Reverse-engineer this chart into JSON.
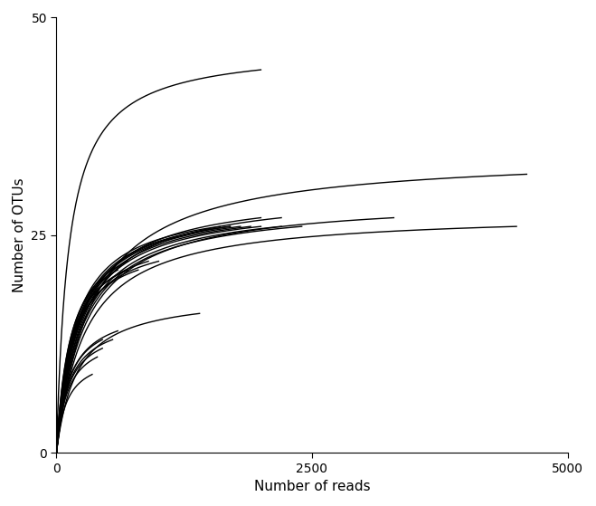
{
  "title": "",
  "xlabel": "Number of reads",
  "ylabel": "Number of OTUs",
  "xlim": [
    0,
    5000
  ],
  "ylim": [
    0,
    50
  ],
  "xticks": [
    0,
    2500,
    5000
  ],
  "yticks": [
    0,
    25,
    50
  ],
  "background_color": "#ffffff",
  "line_color": "#000000",
  "line_width": 1.0,
  "curves": [
    {
      "max_x": 2000,
      "max_y": 44,
      "k": 120
    },
    {
      "max_x": 4600,
      "max_y": 32,
      "k": 350
    },
    {
      "max_x": 4500,
      "max_y": 26,
      "k": 280
    },
    {
      "max_x": 3300,
      "max_y": 27,
      "k": 280
    },
    {
      "max_x": 2200,
      "max_y": 27,
      "k": 250
    },
    {
      "max_x": 2200,
      "max_y": 26,
      "k": 240
    },
    {
      "max_x": 2000,
      "max_y": 26,
      "k": 220
    },
    {
      "max_x": 1900,
      "max_y": 26,
      "k": 210
    },
    {
      "max_x": 1800,
      "max_y": 26,
      "k": 200
    },
    {
      "max_x": 1700,
      "max_y": 26,
      "k": 190
    },
    {
      "max_x": 1600,
      "max_y": 26,
      "k": 180
    },
    {
      "max_x": 2000,
      "max_y": 27,
      "k": 230
    },
    {
      "max_x": 1700,
      "max_y": 26,
      "k": 200
    },
    {
      "max_x": 2400,
      "max_y": 26,
      "k": 250
    },
    {
      "max_x": 1000,
      "max_y": 22,
      "k": 160
    },
    {
      "max_x": 900,
      "max_y": 22,
      "k": 150
    },
    {
      "max_x": 800,
      "max_y": 21,
      "k": 145
    },
    {
      "max_x": 700,
      "max_y": 22,
      "k": 140
    },
    {
      "max_x": 700,
      "max_y": 21,
      "k": 135
    },
    {
      "max_x": 600,
      "max_y": 21,
      "k": 130
    },
    {
      "max_x": 1400,
      "max_y": 16,
      "k": 200
    },
    {
      "max_x": 600,
      "max_y": 14,
      "k": 130
    },
    {
      "max_x": 550,
      "max_y": 13,
      "k": 125
    },
    {
      "max_x": 450,
      "max_y": 13,
      "k": 120
    },
    {
      "max_x": 450,
      "max_y": 12,
      "k": 115
    },
    {
      "max_x": 400,
      "max_y": 11,
      "k": 110
    },
    {
      "max_x": 350,
      "max_y": 9,
      "k": 100
    }
  ]
}
